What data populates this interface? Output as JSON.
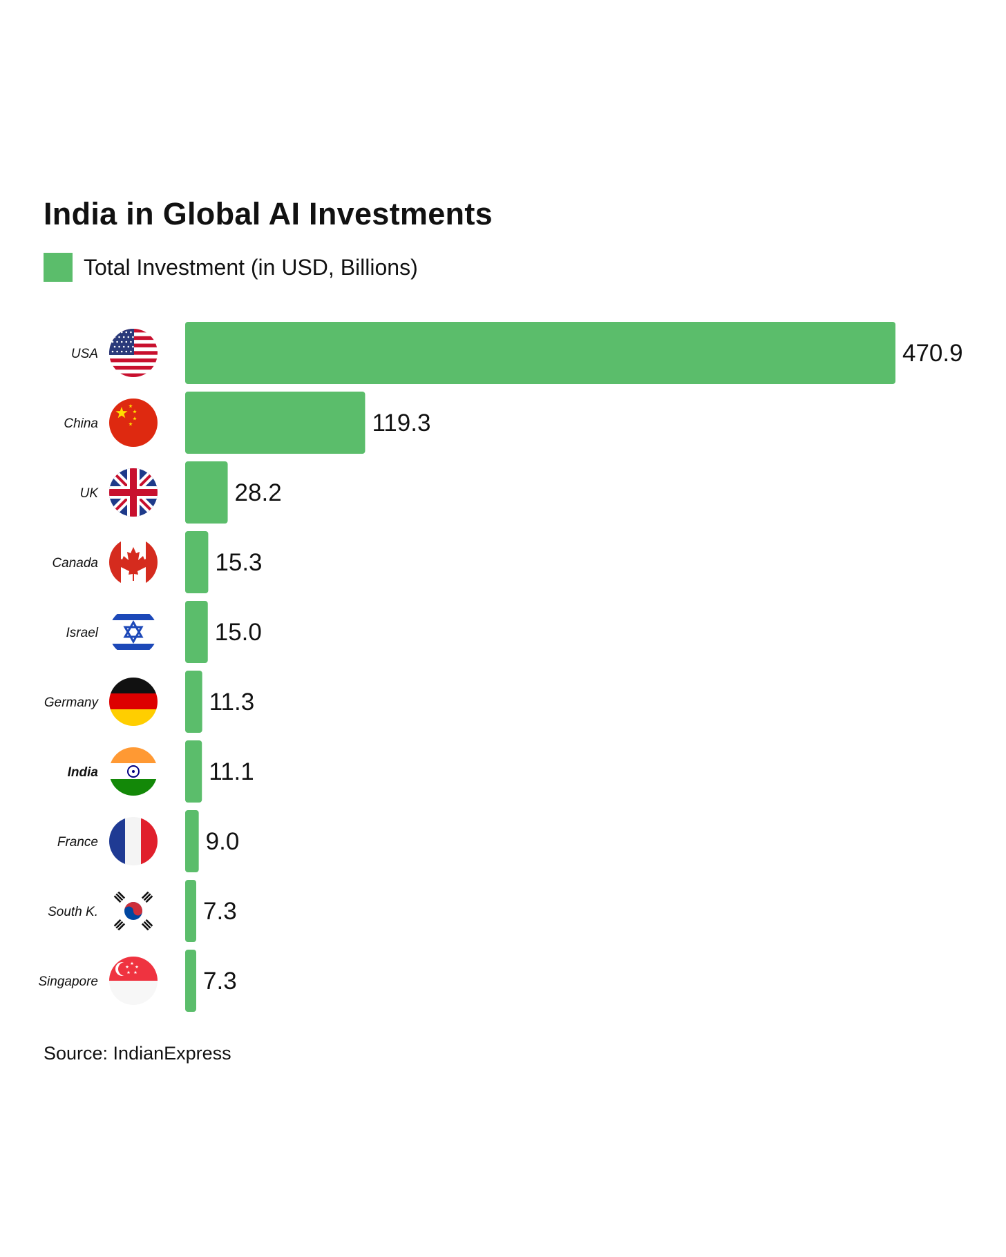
{
  "title": "India in Global AI Investments",
  "legend": {
    "label": "Total Investment (in USD, Billions)",
    "color": "#5bbd6b"
  },
  "source": "Source: IndianExpress",
  "chart_data": {
    "type": "bar",
    "orientation": "horizontal",
    "title": "India in Global AI Investments",
    "xlabel": "",
    "ylabel": "",
    "xlim": [
      0,
      470.9
    ],
    "grid": false,
    "legend_position": "top-left",
    "series": [
      {
        "name": "Total Investment (in USD, Billions)",
        "color": "#5bbd6b",
        "values": [
          470.9,
          119.3,
          28.2,
          15.3,
          15.0,
          11.3,
          11.1,
          9.0,
          7.3,
          7.3
        ]
      }
    ],
    "categories": [
      "USA",
      "China",
      "UK",
      "Canada",
      "Israel",
      "Germany",
      "India",
      "France",
      "South K.",
      "Singapore"
    ],
    "value_labels": [
      "470.9",
      "119.3",
      "28.2",
      "15.3",
      "15.0",
      "11.3",
      "11.1",
      "9.0",
      "7.3",
      "7.3"
    ],
    "highlighted_category": "India",
    "flag_icons": [
      "usa-flag-icon",
      "china-flag-icon",
      "uk-flag-icon",
      "canada-flag-icon",
      "israel-flag-icon",
      "germany-flag-icon",
      "india-flag-icon",
      "france-flag-icon",
      "south-korea-flag-icon",
      "singapore-flag-icon"
    ]
  }
}
